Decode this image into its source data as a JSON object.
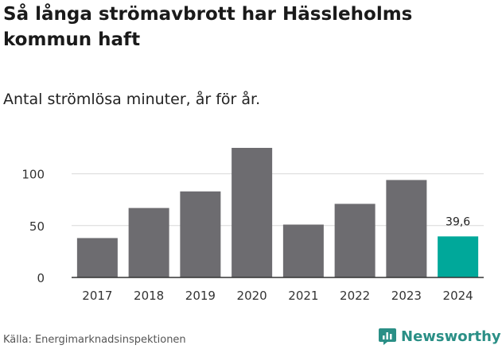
{
  "chart_data": {
    "type": "bar",
    "title": "Så långa strömavbrott har Hässleholms kommun haft",
    "subtitle": "Antal strömlösa minuter, år för år.",
    "categories": [
      "2017",
      "2018",
      "2019",
      "2020",
      "2021",
      "2022",
      "2023",
      "2024"
    ],
    "values": [
      38,
      67,
      83,
      125,
      51,
      71,
      94,
      39.6
    ],
    "highlight_index": 7,
    "data_labels": [
      {
        "index": 7,
        "text": "39,6"
      }
    ],
    "yticks": [
      0,
      50,
      100
    ],
    "ylim": [
      0,
      125
    ],
    "xlabel": "",
    "ylabel": "",
    "grid": true,
    "colors": {
      "bar": "#6d6c70",
      "highlight": "#00a89a",
      "grid": "#d9d9d9",
      "axis": "#333333"
    }
  },
  "source": "Källa: Energimarknadsinspektionen",
  "brand": {
    "name": "Newsworthy",
    "icon": "newsworthy-logo-icon",
    "color": "#2a8f86"
  }
}
